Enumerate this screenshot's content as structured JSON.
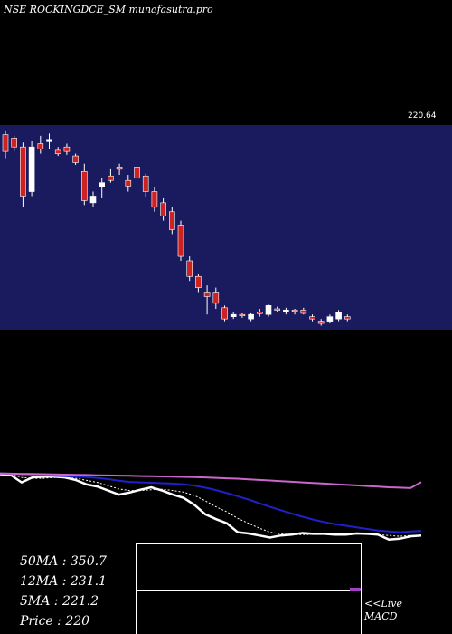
{
  "header": {
    "title": "NSE ROCKINGDCE_SM munafasutra.pro"
  },
  "chart_data": [
    {
      "type": "candlestick",
      "title": "",
      "last_price_label": "220.64",
      "colors": {
        "background": "#1a1a5e",
        "up": "#ffffff",
        "down": "#cc2222"
      },
      "candles": [
        [
          1,
          381,
          384,
          360,
          366
        ],
        [
          2,
          378,
          380,
          366,
          370
        ],
        [
          3,
          370,
          374,
          316,
          326
        ],
        [
          4,
          330,
          375,
          326,
          370
        ],
        [
          5,
          373,
          380,
          364,
          368
        ],
        [
          6,
          375,
          382,
          368,
          376
        ],
        [
          7,
          367,
          370,
          362,
          364
        ],
        [
          8,
          370,
          373,
          363,
          366
        ],
        [
          9,
          362,
          364,
          354,
          356
        ],
        [
          10,
          348,
          355,
          318,
          322
        ],
        [
          11,
          320,
          330,
          316,
          326
        ],
        [
          12,
          334,
          342,
          324,
          338
        ],
        [
          13,
          344,
          350,
          338,
          340
        ],
        [
          14,
          352,
          355,
          345,
          350
        ],
        [
          15,
          340,
          345,
          330,
          335
        ],
        [
          16,
          352,
          354,
          340,
          342
        ],
        [
          17,
          344,
          346,
          325,
          330
        ],
        [
          18,
          330,
          334,
          312,
          316
        ],
        [
          19,
          320,
          324,
          304,
          308
        ],
        [
          20,
          312,
          316,
          292,
          296
        ],
        [
          21,
          300,
          304,
          268,
          272
        ],
        [
          22,
          268,
          272,
          250,
          254
        ],
        [
          23,
          254,
          256,
          240,
          244
        ],
        [
          24,
          240,
          246,
          220,
          236
        ],
        [
          25,
          240,
          244,
          225,
          230
        ],
        [
          26,
          226,
          228,
          214,
          216
        ],
        [
          27,
          218,
          222,
          216,
          220
        ],
        [
          28,
          220,
          221,
          217,
          219
        ],
        [
          29,
          216,
          221,
          214,
          220
        ],
        [
          30,
          222,
          225,
          218,
          221
        ],
        [
          31,
          220,
          229,
          218,
          228
        ],
        [
          32,
          225,
          227,
          222,
          224
        ],
        [
          33,
          222,
          226,
          220,
          224
        ],
        [
          34,
          224,
          225,
          220,
          223
        ],
        [
          35,
          224,
          226,
          220,
          221
        ],
        [
          36,
          218,
          220,
          214,
          216
        ],
        [
          37,
          214,
          216,
          210,
          212
        ],
        [
          38,
          214,
          220,
          212,
          218
        ],
        [
          39,
          216,
          224,
          214,
          222
        ],
        [
          40,
          218,
          220,
          214,
          216
        ]
      ],
      "ylim": [
        208,
        388
      ]
    },
    {
      "type": "line",
      "title": "",
      "colors": {
        "background": "#000000"
      },
      "x": [
        1,
        2,
        3,
        4,
        5,
        6,
        7,
        8,
        9,
        10,
        11,
        12,
        13,
        14,
        15,
        16,
        17,
        18,
        19,
        20,
        21,
        22,
        23,
        24,
        25,
        26,
        27,
        28,
        29,
        30,
        31,
        32,
        33,
        34,
        35,
        36,
        37,
        38,
        39,
        40
      ],
      "series": [
        {
          "color": "#ffffff",
          "values": [
            370,
            368,
            350,
            362,
            364,
            364,
            362,
            356,
            345,
            340,
            330,
            320,
            325,
            332,
            338,
            330,
            320,
            312,
            295,
            272,
            260,
            250,
            228,
            225,
            220,
            215,
            220,
            222,
            226,
            224,
            224,
            222,
            222,
            225,
            224,
            222,
            210,
            212,
            218,
            220
          ]
        },
        {
          "color": "#ffffff",
          "dash": true,
          "values": [
            372,
            370,
            362,
            360,
            360,
            362,
            362,
            360,
            355,
            350,
            342,
            334,
            330,
            330,
            332,
            333,
            330,
            326,
            318,
            305,
            290,
            278,
            262,
            250,
            238,
            228,
            224,
            222,
            222,
            223,
            224,
            224,
            223,
            224,
            223,
            222,
            220,
            218,
            220,
            220
          ]
        },
        {
          "color": "#2020cc",
          "values": [
            372,
            371,
            369,
            368,
            367,
            366,
            365,
            364,
            363,
            361,
            358,
            354,
            351,
            350,
            349,
            348,
            347,
            345,
            342,
            337,
            331,
            324,
            316,
            308,
            299,
            290,
            282,
            274,
            266,
            259,
            253,
            248,
            244,
            240,
            236,
            232,
            230,
            228,
            230,
            231.1
          ]
        },
        {
          "color": "#cc66cc",
          "values": [
            372,
            371.5,
            371,
            370.5,
            370,
            369.5,
            369,
            368.5,
            368,
            367.5,
            367,
            366.5,
            366,
            365.5,
            365,
            364.5,
            364,
            363.5,
            363,
            362,
            361,
            360,
            359,
            357.5,
            356,
            354.5,
            353,
            351.5,
            350,
            348.5,
            347,
            345.5,
            344,
            342.5,
            341,
            339.5,
            338,
            337,
            336,
            350.7
          ]
        }
      ],
      "ylim": [
        205,
        400
      ]
    }
  ],
  "ma_legend": {
    "ma50": "50MA : 350.7",
    "ma12": "12MA : 231.1",
    "ma5": "5MA : 221.2",
    "price": "Price   : 220"
  },
  "macd": {
    "label_live": "<<Live",
    "label_macd": "MACD",
    "colors": {
      "line": "#ffffff",
      "signal": "#a040c0"
    }
  }
}
